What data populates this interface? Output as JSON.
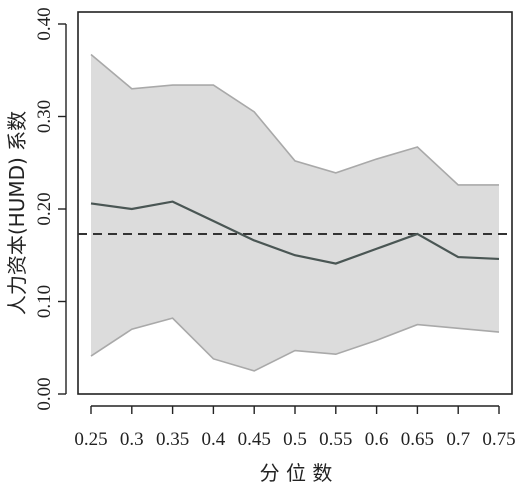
{
  "chart_data": {
    "type": "line",
    "title": "",
    "xlabel": "分 位 数",
    "ylabel": "人力资本(HUMD) 系数",
    "x": [
      0.25,
      0.3,
      0.35,
      0.4,
      0.45,
      0.5,
      0.55,
      0.6,
      0.65,
      0.7,
      0.75
    ],
    "x_tick_labels": [
      "0.25",
      "0.3",
      "0.35",
      "0.4",
      "0.45",
      "0.5",
      "0.55",
      "0.6",
      "0.65",
      "0.7",
      "0.75"
    ],
    "y_ticks": [
      0.0,
      0.1,
      0.2,
      0.3,
      0.4
    ],
    "y_tick_labels": [
      "0.00",
      "0.10",
      "0.20",
      "0.30",
      "0.40"
    ],
    "xlim": [
      0.24,
      0.76
    ],
    "ylim": [
      0.0,
      0.4
    ],
    "series": [
      {
        "role": "quantile-estimate",
        "values": [
          0.206,
          0.2,
          0.208,
          0.187,
          0.166,
          0.15,
          0.141,
          0.157,
          0.173,
          0.148,
          0.146
        ]
      }
    ],
    "confidence_band": {
      "upper": [
        0.367,
        0.33,
        0.334,
        0.334,
        0.305,
        0.252,
        0.239,
        0.254,
        0.267,
        0.226,
        0.226
      ],
      "lower": [
        0.041,
        0.07,
        0.082,
        0.038,
        0.025,
        0.047,
        0.043,
        0.058,
        0.075,
        0.071,
        0.067
      ]
    },
    "reference_line": {
      "y": 0.173,
      "style": "dashed"
    },
    "grid": false,
    "colors": {
      "band_fill": "#dcdcdc",
      "band_edge": "#a9a9a9",
      "line": "#4a5654",
      "axis": "#222222"
    }
  }
}
